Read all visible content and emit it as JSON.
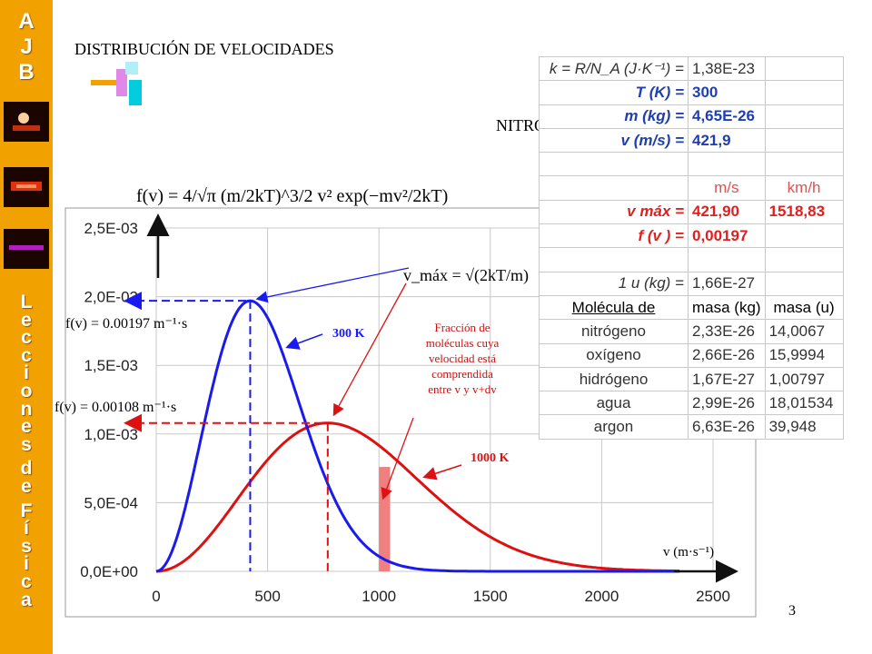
{
  "sidebar": {
    "logo_letters": [
      "A",
      "J",
      "B"
    ],
    "vertical_letters": [
      "L",
      "e",
      "c",
      "c",
      "i",
      "o",
      "n",
      "e",
      "s",
      "",
      "d",
      "e",
      "",
      "F",
      "í",
      "s",
      "i",
      "c",
      "a"
    ]
  },
  "title": "DISTRIBUCIÓN DE VELOCIDADES",
  "gas_label": "NITROGENO",
  "page_number": "3",
  "formula": {
    "main": "f(v) = 4/√π (m/2kT)^3/2 v² exp(−mv²/2kT)",
    "vmax": "v_máx = √(2kT/m)",
    "f300": "f(v) = 0.00197 m⁻¹·s",
    "f1000": "f(v) = 0.00108 m⁻¹·s",
    "x_axis_label": "v (m·s⁻¹)"
  },
  "annotations": {
    "t300": "300 K",
    "t1000": "1000 K",
    "fraction": [
      "Fracción de",
      "moléculas cuya",
      "velocidad está",
      "comprendida",
      "entre v y v+dv"
    ]
  },
  "colors": {
    "sidebar": "#f2a200",
    "curve_300": "#1a1aee",
    "curve_1000": "#dd1111",
    "shade": "#f08080"
  },
  "table": {
    "rows": [
      {
        "label": "k = R/N_A (J·K⁻¹) =",
        "v1": "1,38E-23",
        "v2": "",
        "style": "gray"
      },
      {
        "label": "T (K) =",
        "v1": "300",
        "v2": "",
        "style": "blue"
      },
      {
        "label": "m (kg) =",
        "v1": "4,65E-26",
        "v2": "",
        "style": "blue"
      },
      {
        "label": "v (m/s) =",
        "v1": "421,9",
        "v2": "",
        "style": "blue"
      },
      {
        "label": "",
        "v1": "",
        "v2": "",
        "style": "gray"
      },
      {
        "label": "",
        "v1": "m/s",
        "v2": "km/h",
        "style": "hdr"
      },
      {
        "label": "v máx =",
        "v1": "421,90",
        "v2": "1518,83",
        "style": "red"
      },
      {
        "label": "f (v ) =",
        "v1": "0,00197",
        "v2": "",
        "style": "red"
      },
      {
        "label": "",
        "v1": "",
        "v2": "",
        "style": "gray"
      },
      {
        "label": "1 u (kg) =",
        "v1": "1,66E-27",
        "v2": "",
        "style": "gray"
      },
      {
        "label": "Molécula de",
        "v1": "masa (kg)",
        "v2": "masa (u)",
        "style": "mol-hdr"
      },
      {
        "label": "nitrógeno",
        "v1": "2,33E-26",
        "v2": "14,0067",
        "style": "mol"
      },
      {
        "label": "oxígeno",
        "v1": "2,66E-26",
        "v2": "15,9994",
        "style": "mol"
      },
      {
        "label": "hidrógeno",
        "v1": "1,67E-27",
        "v2": "1,00797",
        "style": "mol"
      },
      {
        "label": "agua",
        "v1": "2,99E-26",
        "v2": "18,01534",
        "style": "mol"
      },
      {
        "label": "argon",
        "v1": "6,63E-26",
        "v2": "39,948",
        "style": "mol"
      }
    ]
  },
  "chart_data": {
    "type": "line",
    "x_ticks": [
      "0",
      "500",
      "1000",
      "1500",
      "2000",
      "2500"
    ],
    "y_ticks": [
      "0,0E+00",
      "5,0E-04",
      "1,0E-03",
      "1,5E-03",
      "2,0E-03",
      "2,5E-03"
    ],
    "xlim": [
      0,
      2500
    ],
    "ylim": [
      0,
      0.0025
    ],
    "grid": true,
    "series": [
      {
        "name": "300 K",
        "T": 300,
        "m": 4.65e-26,
        "peak_x": 421.9,
        "peak_y": 0.00197
      },
      {
        "name": "1000 K",
        "T": 1000,
        "m": 4.65e-26,
        "peak_x": 770,
        "peak_y": 0.00108
      }
    ],
    "shaded_interval": [
      1000,
      1050
    ]
  }
}
